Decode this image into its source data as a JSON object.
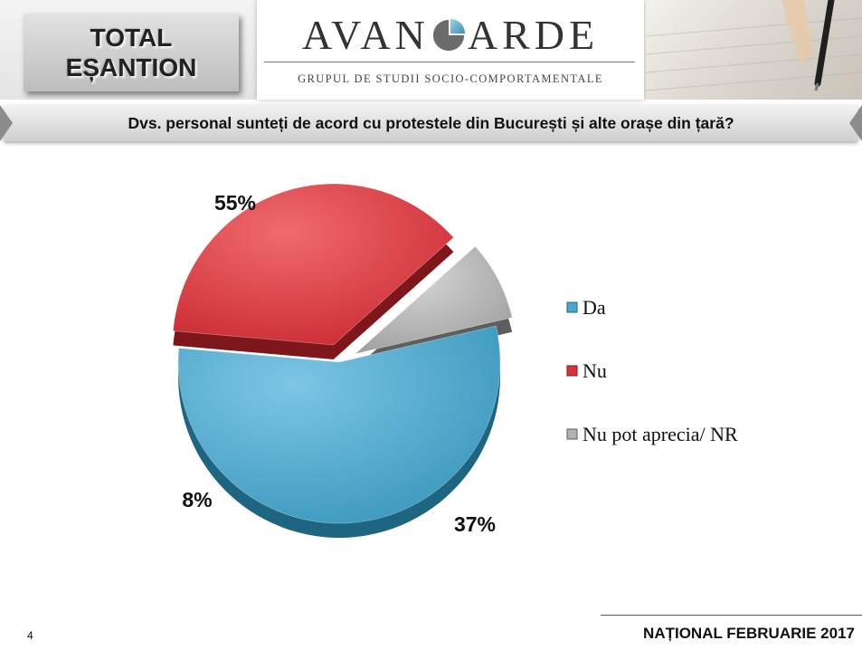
{
  "header": {
    "badge_line1": "TOTAL",
    "badge_line2": "EȘANTION",
    "logo_left": "AVAN",
    "logo_right": "ARDE",
    "logo_subtitle": "GRUPUL DE STUDII SOCIO-COMPORTAMENTALE"
  },
  "question": "Dvs. personal sunteți de acord cu protestele din București și alte orașe din țară?",
  "chart_data": {
    "type": "pie",
    "categories": [
      "Da",
      "Nu",
      "Nu pot aprecia/ NR"
    ],
    "values": [
      55,
      37,
      8
    ],
    "value_labels": [
      "55%",
      "37%",
      "8%"
    ],
    "colors": [
      "#4aa8cc",
      "#d8343b",
      "#b2b2b2"
    ],
    "legend_position": "right"
  },
  "footer": {
    "page_number": "4",
    "label": "NAȚIONAL FEBRUARIE 2017"
  }
}
